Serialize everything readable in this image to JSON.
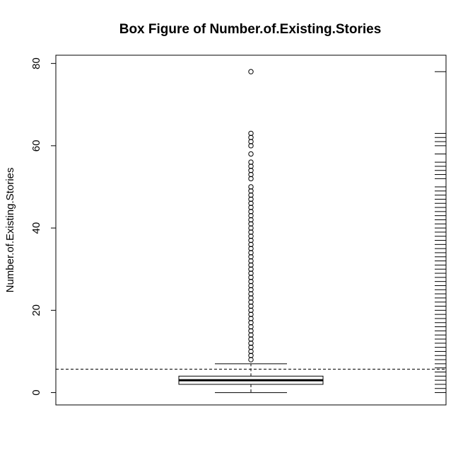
{
  "chart_data": {
    "type": "box",
    "title": "Box Figure of Number.of.Existing.Stories",
    "xlabel": "",
    "ylabel": "Number.of.Existing.Stories",
    "ylim": [
      -3,
      82
    ],
    "yticks": [
      0,
      20,
      40,
      60,
      80
    ],
    "ytick_labels": [
      "0",
      "20",
      "40",
      "60",
      "80"
    ],
    "box": {
      "min": 0,
      "q1": 2,
      "median": 3,
      "q3": 4,
      "max": 7
    },
    "mean_line": 5.7,
    "outliers": [
      8,
      9,
      10,
      11,
      12,
      13,
      14,
      15,
      16,
      17,
      18,
      19,
      20,
      21,
      22,
      23,
      24,
      25,
      26,
      27,
      28,
      29,
      30,
      31,
      32,
      33,
      34,
      35,
      36,
      37,
      38,
      39,
      40,
      41,
      42,
      43,
      44,
      45,
      46,
      47,
      48,
      49,
      50,
      52,
      53,
      54,
      55,
      56,
      58,
      60,
      61,
      62,
      63,
      78
    ],
    "rug": [
      0,
      1,
      2,
      3,
      4,
      5,
      6,
      7,
      8,
      9,
      10,
      11,
      12,
      13,
      14,
      15,
      16,
      17,
      18,
      19,
      20,
      21,
      22,
      23,
      24,
      25,
      26,
      27,
      28,
      29,
      30,
      31,
      32,
      33,
      34,
      35,
      36,
      37,
      38,
      39,
      40,
      41,
      42,
      43,
      44,
      45,
      46,
      47,
      48,
      49,
      50,
      52,
      53,
      54,
      55,
      56,
      58,
      60,
      61,
      62,
      63,
      78
    ],
    "grid": false,
    "legend": "none"
  }
}
